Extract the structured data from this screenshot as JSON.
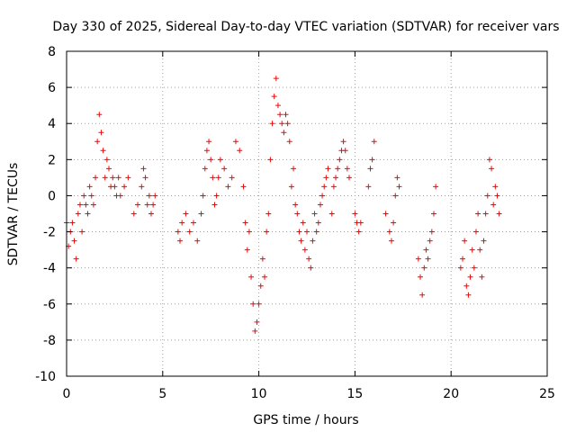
{
  "chart_data": {
    "type": "scatter",
    "title": "Day 330 of 2025, Sidereal Day-to-day VTEC variation (SDTVAR) for receiver vars",
    "xlabel": "GPS time / hours",
    "ylabel": "SDTVAR / TECUs",
    "xlim": [
      0,
      25
    ],
    "ylim": [
      -10,
      8
    ],
    "xticks": [
      0,
      5,
      10,
      15,
      20,
      25
    ],
    "yticks": [
      -10,
      -8,
      -6,
      -4,
      -2,
      0,
      2,
      4,
      6,
      8
    ],
    "grid": true,
    "marker": "+",
    "color": "#ff0000",
    "series": [
      {
        "name": "SDTVAR",
        "x": [
          0.0,
          0.1,
          0.2,
          0.3,
          0.4,
          0.5,
          0.6,
          0.7,
          0.8,
          0.9,
          1.0,
          1.1,
          1.2,
          1.3,
          1.4,
          1.5,
          1.6,
          1.7,
          1.8,
          1.9,
          2.0,
          2.1,
          2.2,
          2.3,
          2.4,
          2.5,
          2.6,
          2.7,
          2.8,
          3.0,
          3.2,
          3.5,
          3.7,
          3.9,
          4.0,
          4.1,
          4.2,
          4.3,
          4.4,
          4.5,
          4.6,
          5.8,
          5.9,
          6.0,
          6.2,
          6.4,
          6.6,
          6.8,
          7.0,
          7.1,
          7.2,
          7.3,
          7.4,
          7.5,
          7.6,
          7.7,
          7.8,
          7.9,
          8.0,
          8.2,
          8.4,
          8.6,
          8.8,
          9.0,
          9.2,
          9.3,
          9.4,
          9.5,
          9.6,
          9.7,
          9.8,
          9.9,
          10.0,
          10.1,
          10.2,
          10.3,
          10.4,
          10.5,
          10.6,
          10.7,
          10.8,
          10.9,
          11.0,
          11.1,
          11.2,
          11.3,
          11.4,
          11.5,
          11.6,
          11.7,
          11.8,
          11.9,
          12.0,
          12.1,
          12.2,
          12.3,
          12.4,
          12.5,
          12.6,
          12.7,
          12.8,
          12.9,
          13.0,
          13.1,
          13.2,
          13.3,
          13.4,
          13.5,
          13.6,
          13.8,
          13.9,
          14.0,
          14.1,
          14.2,
          14.3,
          14.4,
          14.5,
          14.6,
          14.7,
          15.0,
          15.1,
          15.2,
          15.3,
          15.7,
          15.8,
          15.9,
          16.0,
          16.6,
          16.8,
          16.9,
          17.0,
          17.1,
          17.2,
          17.3,
          18.3,
          18.4,
          18.5,
          18.6,
          18.7,
          18.8,
          18.9,
          19.0,
          19.1,
          19.2,
          20.5,
          20.6,
          20.7,
          20.8,
          20.9,
          21.0,
          21.1,
          21.2,
          21.3,
          21.4,
          21.5,
          21.6,
          21.7,
          21.8,
          21.9,
          22.0,
          22.1,
          22.2,
          22.3,
          22.4,
          22.5
        ],
        "y": [
          -1.5,
          -2.8,
          -2.0,
          -1.5,
          -2.5,
          -3.5,
          -1.0,
          -0.5,
          -2.0,
          0.0,
          -0.5,
          -1.0,
          0.5,
          0.0,
          -0.5,
          1.0,
          3.0,
          4.5,
          3.5,
          2.5,
          1.0,
          2.0,
          1.5,
          0.5,
          1.0,
          0.5,
          0.0,
          1.0,
          0.0,
          0.5,
          1.0,
          -1.0,
          -0.5,
          0.5,
          1.5,
          1.0,
          -0.5,
          0.0,
          -1.0,
          -0.5,
          0.0,
          -2.0,
          -2.5,
          -1.5,
          -1.0,
          -2.0,
          -1.5,
          -2.5,
          -1.0,
          0.0,
          1.5,
          2.5,
          3.0,
          2.0,
          1.0,
          -0.5,
          0.0,
          1.0,
          2.0,
          1.5,
          0.5,
          1.0,
          3.0,
          2.5,
          0.5,
          -1.5,
          -3.0,
          -2.0,
          -4.5,
          -6.0,
          -7.5,
          -7.0,
          -6.0,
          -5.0,
          -3.5,
          -4.5,
          -2.0,
          -1.0,
          2.0,
          4.0,
          5.5,
          6.5,
          5.0,
          4.5,
          4.0,
          3.5,
          4.5,
          4.0,
          3.0,
          0.5,
          1.5,
          -0.5,
          -1.0,
          -2.0,
          -2.5,
          -1.5,
          -3.0,
          -2.0,
          -3.5,
          -4.0,
          -2.5,
          -1.0,
          -2.0,
          -1.5,
          -0.5,
          0.0,
          0.5,
          1.0,
          1.5,
          -1.0,
          0.5,
          1.0,
          1.5,
          2.0,
          2.5,
          3.0,
          2.5,
          1.5,
          1.0,
          -1.0,
          -1.5,
          -2.0,
          -1.5,
          0.5,
          1.5,
          2.0,
          3.0,
          -1.0,
          -2.0,
          -2.5,
          -1.5,
          0.0,
          1.0,
          0.5,
          -3.5,
          -4.5,
          -5.5,
          -4.0,
          -3.0,
          -3.5,
          -2.5,
          -2.0,
          -1.0,
          0.5,
          -4.0,
          -3.5,
          -2.5,
          -5.0,
          -5.5,
          -4.5,
          -3.0,
          -4.0,
          -2.0,
          -1.0,
          -3.0,
          -4.5,
          -2.5,
          -1.0,
          0.0,
          2.0,
          1.5,
          -0.5,
          0.5,
          0.0,
          -1.0
        ]
      }
    ]
  }
}
